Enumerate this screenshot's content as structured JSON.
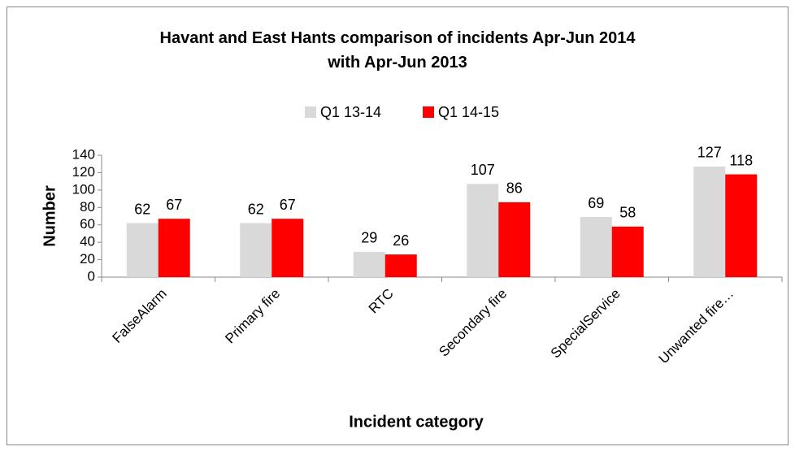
{
  "chart_data": {
    "type": "bar",
    "title": "Havant and East Hants comparison of incidents Apr-Jun 2014 with Apr-Jun 2013",
    "x_label": "Incident category",
    "y_label": "Number",
    "categories": [
      "FalseAlarm",
      "Primary fire",
      "RTC",
      "Secondary fire",
      "SpecialService",
      "Unwanted fire…"
    ],
    "series": [
      {
        "name": "Q1 13-14",
        "color": "#d9d9d9",
        "values": [
          62,
          62,
          29,
          107,
          69,
          127
        ]
      },
      {
        "name": "Q1 14-15",
        "color": "#ff0000",
        "values": [
          67,
          67,
          26,
          86,
          58,
          118
        ]
      }
    ],
    "ylim": [
      0,
      140
    ],
    "yticks": [
      0,
      20,
      40,
      60,
      80,
      100,
      120,
      140
    ],
    "grid": false,
    "legend": "top"
  }
}
